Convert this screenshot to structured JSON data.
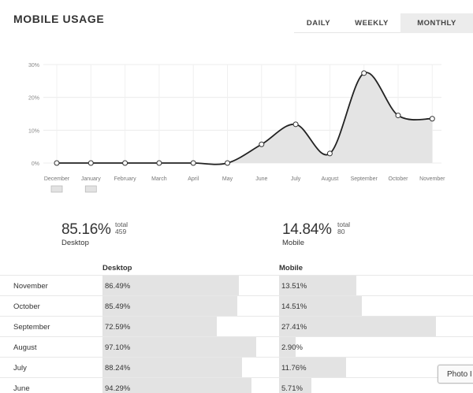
{
  "header": {
    "title": "MOBILE USAGE"
  },
  "range_tabs": [
    {
      "label": "DAILY",
      "active": false
    },
    {
      "label": "WEEKLY",
      "active": false
    },
    {
      "label": "MONTHLY",
      "active": true
    }
  ],
  "chart_data": {
    "type": "area",
    "categories": [
      "December",
      "January",
      "February",
      "March",
      "April",
      "May",
      "June",
      "July",
      "August",
      "September",
      "October",
      "November"
    ],
    "values": [
      0,
      0,
      0,
      0,
      0,
      0,
      5.7,
      11.8,
      2.9,
      27.4,
      14.5,
      13.5
    ],
    "ylim": [
      0,
      30
    ],
    "yticks": [
      "0%",
      "10%",
      "20%",
      "30%"
    ],
    "grid": true
  },
  "stats": {
    "desktop": {
      "percent": "85.16%",
      "total_label": "total",
      "total": "459",
      "name": "Desktop"
    },
    "mobile": {
      "percent": "14.84%",
      "total_label": "total",
      "total": "80",
      "name": "Mobile"
    }
  },
  "table": {
    "headers": {
      "desktop": "Desktop",
      "mobile": "Mobile"
    },
    "rows": [
      {
        "month": "November",
        "desktop": "86.49%",
        "mobile": "13.51%"
      },
      {
        "month": "October",
        "desktop": "85.49%",
        "mobile": "14.51%"
      },
      {
        "month": "September",
        "desktop": "72.59%",
        "mobile": "27.41%"
      },
      {
        "month": "August",
        "desktop": "97.10%",
        "mobile": "2.90%"
      },
      {
        "month": "July",
        "desktop": "88.24%",
        "mobile": "11.76%"
      },
      {
        "month": "June",
        "desktop": "94.29%",
        "mobile": "5.71%"
      }
    ]
  },
  "photo_button": {
    "label": "Photo I"
  }
}
